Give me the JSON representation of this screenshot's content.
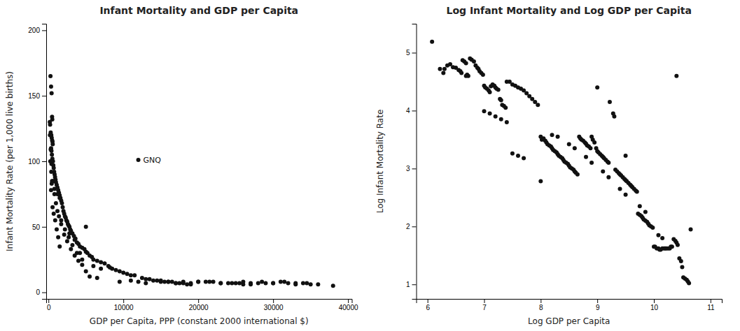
{
  "chart_data": [
    {
      "type": "scatter",
      "title": "Infant Mortality and GDP per Capita",
      "x_label": "GDP per Capita, PPP (constant 2000 international $)",
      "y_label": "Infant Mortality Rate (per 1,000 live births)",
      "color": "#111111",
      "xlim": [
        -300,
        40500
      ],
      "ylim": [
        -5,
        205
      ],
      "xticks": [
        0,
        10000,
        20000,
        30000,
        40000
      ],
      "yticks": [
        0,
        50,
        100,
        150,
        200
      ],
      "annotations": [
        {
          "text": "GNQ",
          "x": 12000,
          "y": 101
        }
      ],
      "x": [
        270,
        350,
        420,
        480,
        510,
        180,
        220,
        300,
        380,
        430,
        490,
        540,
        570,
        350,
        400,
        460,
        520,
        600,
        650,
        700,
        760,
        820,
        880,
        940,
        1000,
        1100,
        1200,
        1300,
        1400,
        1500,
        1600,
        1700,
        1800,
        1900,
        2000,
        2100,
        2200,
        2300,
        2400,
        2500,
        2600,
        2700,
        2800,
        2900,
        3000,
        3200,
        3400,
        3600,
        3800,
        4000,
        4200,
        4500,
        4800,
        5000,
        5200,
        5500,
        5800,
        6000,
        6500,
        7000,
        7500,
        8000,
        8200,
        8500,
        9000,
        9500,
        10000,
        10500,
        11000,
        11500,
        12500,
        13000,
        13500,
        14000,
        14500,
        15000,
        15500,
        16000,
        16500,
        17000,
        17500,
        18000,
        18500,
        19000,
        20000,
        21000,
        22000,
        23000,
        24000,
        25000,
        26000,
        27000,
        28000,
        29000,
        30000,
        31000,
        32000,
        33000,
        34000,
        35000,
        1200,
        1500,
        2800,
        3500,
        4200,
        5000,
        6000,
        7000,
        350,
        430,
        700,
        550,
        900,
        1100,
        1300,
        1500,
        200,
        300,
        400,
        600,
        800,
        1000,
        1400,
        1700,
        2100,
        2500,
        3000,
        3500,
        4000,
        4500,
        5000,
        5500,
        6500,
        800,
        1200,
        1700,
        2200,
        2700,
        3200,
        3800,
        4500,
        250,
        380,
        480,
        9500,
        11000,
        12000,
        13000,
        15000,
        16000,
        17000,
        18000,
        19000,
        20000,
        21500,
        23000,
        24500,
        25500,
        26000,
        27000,
        28500,
        30000,
        31500,
        33000,
        34500,
        36000,
        38000
      ],
      "values": [
        165,
        157,
        152,
        134,
        132,
        130,
        128,
        122,
        120,
        118,
        116,
        115,
        113,
        110,
        108,
        105,
        102,
        100,
        97,
        95,
        92,
        90,
        88,
        86,
        84,
        82,
        80,
        78,
        76,
        74,
        72,
        70,
        68,
        65,
        62,
        60,
        58,
        57,
        55,
        54,
        52,
        51,
        50,
        48,
        47,
        45,
        43,
        41,
        38,
        37,
        35,
        34,
        33,
        31,
        30,
        28,
        27,
        25,
        24,
        23,
        22,
        20,
        19,
        18,
        17,
        16,
        15,
        14,
        13,
        13,
        11,
        10,
        10,
        9,
        9,
        8,
        8,
        8,
        8,
        7,
        7,
        7,
        6,
        6,
        8,
        8,
        8,
        7,
        7,
        7,
        6,
        6,
        7,
        7,
        7,
        8,
        7,
        7,
        7,
        6,
        75,
        72,
        45,
        40,
        30,
        50,
        20,
        18,
        78,
        83,
        60,
        65,
        55,
        48,
        42,
        35,
        120,
        109,
        98,
        85,
        79,
        68,
        58,
        52,
        44,
        39,
        33,
        28,
        24,
        21,
        16,
        12,
        11,
        75,
        62,
        55,
        48,
        42,
        36,
        30,
        25,
        100,
        92,
        85,
        8,
        9,
        8,
        7,
        9,
        8,
        7,
        8,
        7,
        8,
        8,
        7,
        7,
        7,
        8,
        7,
        8,
        7,
        8,
        6,
        7,
        6,
        5
      ]
    },
    {
      "type": "scatter",
      "title": "Log Infant Mortality and Log GDP per Capita",
      "x_label": "Log GDP per Capita",
      "y_label": "Log Infant Mortality Rate",
      "color": "#111111",
      "xlim": [
        5.8,
        11.2
      ],
      "ylim": [
        0.75,
        5.5
      ],
      "xticks": [
        6,
        7,
        8,
        9,
        10,
        11
      ],
      "yticks": [
        1,
        2,
        3,
        4,
        5
      ],
      "x": [
        6.08,
        6.22,
        6.28,
        6.35,
        6.4,
        6.45,
        6.5,
        6.55,
        6.58,
        6.6,
        6.62,
        6.65,
        6.68,
        6.7,
        6.72,
        6.75,
        6.78,
        6.82,
        6.85,
        6.88,
        6.9,
        6.92,
        6.95,
        6.98,
        7.0,
        7.02,
        7.05,
        7.08,
        7.1,
        7.12,
        7.15,
        7.18,
        7.2,
        7.22,
        7.25,
        7.28,
        7.3,
        7.32,
        7.35,
        7.38,
        7.4,
        7.45,
        7.5,
        7.55,
        7.6,
        7.65,
        7.7,
        7.75,
        7.8,
        7.85,
        7.9,
        7.95,
        7.0,
        7.1,
        7.2,
        7.3,
        7.4,
        7.5,
        7.6,
        7.7,
        8.0,
        8.02,
        8.05,
        8.08,
        8.1,
        8.12,
        8.15,
        8.18,
        8.2,
        8.22,
        8.25,
        8.28,
        8.3,
        8.32,
        8.35,
        8.38,
        8.4,
        8.42,
        8.45,
        8.48,
        8.5,
        8.52,
        8.55,
        8.58,
        8.6,
        8.62,
        8.65,
        8.68,
        8.7,
        8.72,
        8.75,
        8.78,
        8.8,
        8.82,
        8.85,
        8.88,
        8.9,
        8.92,
        8.95,
        8.98,
        9.0,
        9.02,
        9.05,
        9.08,
        9.1,
        9.12,
        9.15,
        9.18,
        9.2,
        9.22,
        9.28,
        9.3,
        9.32,
        9.35,
        9.38,
        9.4,
        9.42,
        9.45,
        9.48,
        9.5,
        9.52,
        9.55,
        9.58,
        9.6,
        9.62,
        9.65,
        9.68,
        9.7,
        9.72,
        9.75,
        9.78,
        9.8,
        9.82,
        9.85,
        9.88,
        9.9,
        9.92,
        9.95,
        9.98,
        10.0,
        10.02,
        10.05,
        10.08,
        10.1,
        10.12,
        10.15,
        10.18,
        10.2,
        10.22,
        10.25,
        10.28,
        10.3,
        10.32,
        10.35,
        10.38,
        10.4,
        10.42,
        10.45,
        10.48,
        10.5,
        10.52,
        10.55,
        10.58,
        10.6,
        10.62,
        10.4,
        9.0,
        9.5,
        8.0,
        6.68,
        6.3,
        10.65,
        10.08,
        10.15,
        9.85,
        9.75,
        9.5,
        9.4,
        9.2,
        9.1,
        8.9,
        8.8,
        8.6,
        8.5,
        8.3,
        8.2
      ],
      "values": [
        5.19,
        4.72,
        4.65,
        4.78,
        4.8,
        4.75,
        4.74,
        4.7,
        4.68,
        4.65,
        4.87,
        4.85,
        4.82,
        4.62,
        4.6,
        4.9,
        4.88,
        4.85,
        4.78,
        4.74,
        4.72,
        4.68,
        4.65,
        4.62,
        4.43,
        4.4,
        4.38,
        4.35,
        4.32,
        4.42,
        4.45,
        4.43,
        4.4,
        4.38,
        4.36,
        4.2,
        4.18,
        4.1,
        4.08,
        4.05,
        4.5,
        4.5,
        4.45,
        4.43,
        4.4,
        4.38,
        4.35,
        4.3,
        4.25,
        4.2,
        4.15,
        4.1,
        3.99,
        3.95,
        3.9,
        3.85,
        3.8,
        3.26,
        3.22,
        3.18,
        3.55,
        3.5,
        3.52,
        3.48,
        3.45,
        3.42,
        3.4,
        3.38,
        3.35,
        3.32,
        3.3,
        3.28,
        3.25,
        3.22,
        3.2,
        3.18,
        3.15,
        3.12,
        3.1,
        3.08,
        3.05,
        3.02,
        3.0,
        2.98,
        2.95,
        2.93,
        2.9,
        3.55,
        3.52,
        3.5,
        3.48,
        3.45,
        3.43,
        3.4,
        3.38,
        3.35,
        3.55,
        3.5,
        3.45,
        3.35,
        3.3,
        3.28,
        3.25,
        3.22,
        3.2,
        3.18,
        3.15,
        3.12,
        3.1,
        4.15,
        3.95,
        3.9,
        2.98,
        2.95,
        2.92,
        2.9,
        2.88,
        2.85,
        2.82,
        2.8,
        2.78,
        2.75,
        2.72,
        2.7,
        2.68,
        2.65,
        2.62,
        2.6,
        2.22,
        2.2,
        2.18,
        2.15,
        2.12,
        2.1,
        2.08,
        2.05,
        2.02,
        2.0,
        1.98,
        1.65,
        1.65,
        1.62,
        1.62,
        1.6,
        1.6,
        1.62,
        1.62,
        1.62,
        1.62,
        1.62,
        1.62,
        1.65,
        1.65,
        1.78,
        1.75,
        1.72,
        1.68,
        1.45,
        1.4,
        1.3,
        1.12,
        1.1,
        1.08,
        1.05,
        1.02,
        4.6,
        4.4,
        3.22,
        2.78,
        4.6,
        4.72,
        1.95,
        1.85,
        1.8,
        2.25,
        2.35,
        2.55,
        2.65,
        2.85,
        2.95,
        3.1,
        3.2,
        3.35,
        3.42,
        3.55,
        3.58
      ]
    }
  ]
}
